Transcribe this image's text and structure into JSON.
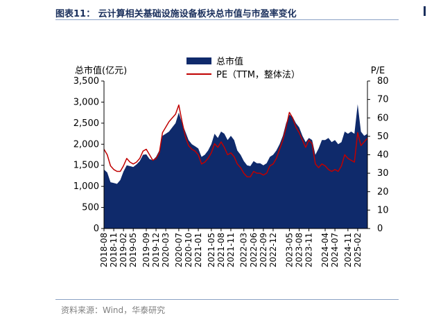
{
  "figure_title": "图表11：  云计算相关基础设施设备板块总市值与市盈率变化",
  "source_note": "资料来源：Wind，华泰研究",
  "colors": {
    "market_cap": "#0f2a6b",
    "pe": "#c00000",
    "axis": "#000000",
    "title": "#1a2f5c"
  },
  "chart_data": {
    "type": "area",
    "x_type": "date",
    "x_ticks": [
      "2018-08",
      "2018-11",
      "2019-02",
      "2019-05",
      "2019-09",
      "2019-12",
      "2020-03",
      "2020-07",
      "2020-10",
      "2021-01",
      "2021-05",
      "2021-08",
      "2021-11",
      "2022-03",
      "2022-06",
      "2022-09",
      "2022-12",
      "2023-05",
      "2023-08",
      "2023-11",
      "2024-04",
      "2024-07",
      "2024-11",
      "2025-02"
    ],
    "x_range": [
      "2018-08",
      "2025-05"
    ],
    "y_left": {
      "label": "总市值(亿元)",
      "ylim": [
        0,
        3500
      ],
      "ticks": [
        "0",
        "500",
        "1,000",
        "1,500",
        "2,000",
        "2,500",
        "3,000",
        "3,500"
      ]
    },
    "y_right": {
      "label": "P/E",
      "ylim": [
        0,
        80
      ],
      "ticks": [
        "0",
        "10",
        "20",
        "30",
        "40",
        "50",
        "60",
        "70",
        "80"
      ]
    },
    "legend": {
      "placement": "top-center"
    },
    "series": [
      {
        "name": "总市值",
        "type": "area",
        "axis": "left",
        "color": "#0f2a6b",
        "points": [
          [
            "2018-08",
            1400
          ],
          [
            "2018-09",
            1330
          ],
          [
            "2018-10",
            1100
          ],
          [
            "2018-11",
            1080
          ],
          [
            "2018-12",
            1060
          ],
          [
            "2019-01",
            1150
          ],
          [
            "2019-02",
            1350
          ],
          [
            "2019-03",
            1500
          ],
          [
            "2019-04",
            1480
          ],
          [
            "2019-05",
            1460
          ],
          [
            "2019-06",
            1520
          ],
          [
            "2019-07",
            1600
          ],
          [
            "2019-08",
            1750
          ],
          [
            "2019-09",
            1760
          ],
          [
            "2019-10",
            1650
          ],
          [
            "2019-11",
            1620
          ],
          [
            "2019-12",
            1700
          ],
          [
            "2020-01",
            1850
          ],
          [
            "2020-02",
            2200
          ],
          [
            "2020-03",
            2250
          ],
          [
            "2020-04",
            2300
          ],
          [
            "2020-05",
            2400
          ],
          [
            "2020-06",
            2500
          ],
          [
            "2020-07",
            2750
          ],
          [
            "2020-08",
            2500
          ],
          [
            "2020-09",
            2300
          ],
          [
            "2020-10",
            2100
          ],
          [
            "2020-11",
            2000
          ],
          [
            "2020-12",
            1950
          ],
          [
            "2021-01",
            1900
          ],
          [
            "2021-02",
            1700
          ],
          [
            "2021-03",
            1750
          ],
          [
            "2021-04",
            1850
          ],
          [
            "2021-05",
            2000
          ],
          [
            "2021-06",
            2250
          ],
          [
            "2021-07",
            2150
          ],
          [
            "2021-08",
            2300
          ],
          [
            "2021-09",
            2250
          ],
          [
            "2021-10",
            2100
          ],
          [
            "2021-11",
            2200
          ],
          [
            "2021-12",
            2100
          ],
          [
            "2022-01",
            1850
          ],
          [
            "2022-02",
            1750
          ],
          [
            "2022-03",
            1600
          ],
          [
            "2022-04",
            1500
          ],
          [
            "2022-05",
            1480
          ],
          [
            "2022-06",
            1600
          ],
          [
            "2022-07",
            1550
          ],
          [
            "2022-08",
            1550
          ],
          [
            "2022-09",
            1500
          ],
          [
            "2022-10",
            1550
          ],
          [
            "2022-11",
            1700
          ],
          [
            "2022-12",
            1750
          ],
          [
            "2023-01",
            1850
          ],
          [
            "2023-02",
            2000
          ],
          [
            "2023-03",
            2200
          ],
          [
            "2023-04",
            2500
          ],
          [
            "2023-05",
            2700
          ],
          [
            "2023-06",
            2650
          ],
          [
            "2023-07",
            2500
          ],
          [
            "2023-08",
            2400
          ],
          [
            "2023-09",
            2200
          ],
          [
            "2023-10",
            2050
          ],
          [
            "2023-11",
            2150
          ],
          [
            "2023-12",
            2100
          ],
          [
            "2024-01",
            1750
          ],
          [
            "2024-02",
            1900
          ],
          [
            "2024-03",
            2100
          ],
          [
            "2024-04",
            2100
          ],
          [
            "2024-05",
            2150
          ],
          [
            "2024-06",
            2050
          ],
          [
            "2024-07",
            2100
          ],
          [
            "2024-08",
            2000
          ],
          [
            "2024-09",
            2050
          ],
          [
            "2024-10",
            2300
          ],
          [
            "2024-11",
            2250
          ],
          [
            "2024-12",
            2300
          ],
          [
            "2025-01",
            2250
          ],
          [
            "2025-02",
            2950
          ],
          [
            "2025-03",
            2300
          ],
          [
            "2025-04",
            2200
          ],
          [
            "2025-05",
            2250
          ]
        ]
      },
      {
        "name": "PE（TTM，整体法）",
        "type": "line",
        "axis": "right",
        "color": "#c00000",
        "points": [
          [
            "2018-08",
            43
          ],
          [
            "2018-09",
            40
          ],
          [
            "2018-10",
            34
          ],
          [
            "2018-11",
            32
          ],
          [
            "2018-12",
            31
          ],
          [
            "2019-01",
            31
          ],
          [
            "2019-02",
            34
          ],
          [
            "2019-03",
            38
          ],
          [
            "2019-04",
            36
          ],
          [
            "2019-05",
            35
          ],
          [
            "2019-06",
            36
          ],
          [
            "2019-07",
            38
          ],
          [
            "2019-08",
            42
          ],
          [
            "2019-09",
            43
          ],
          [
            "2019-10",
            40
          ],
          [
            "2019-11",
            37
          ],
          [
            "2019-12",
            38
          ],
          [
            "2020-01",
            41
          ],
          [
            "2020-02",
            52
          ],
          [
            "2020-03",
            55
          ],
          [
            "2020-04",
            58
          ],
          [
            "2020-05",
            60
          ],
          [
            "2020-06",
            62
          ],
          [
            "2020-07",
            67
          ],
          [
            "2020-08",
            58
          ],
          [
            "2020-09",
            50
          ],
          [
            "2020-10",
            45
          ],
          [
            "2020-11",
            43
          ],
          [
            "2020-12",
            42
          ],
          [
            "2021-01",
            40
          ],
          [
            "2021-02",
            35
          ],
          [
            "2021-03",
            36
          ],
          [
            "2021-04",
            38
          ],
          [
            "2021-05",
            41
          ],
          [
            "2021-06",
            46
          ],
          [
            "2021-07",
            44
          ],
          [
            "2021-08",
            47
          ],
          [
            "2021-09",
            44
          ],
          [
            "2021-10",
            40
          ],
          [
            "2021-11",
            41
          ],
          [
            "2021-12",
            39
          ],
          [
            "2022-01",
            35
          ],
          [
            "2022-02",
            33
          ],
          [
            "2022-03",
            30
          ],
          [
            "2022-04",
            28
          ],
          [
            "2022-05",
            28
          ],
          [
            "2022-06",
            31
          ],
          [
            "2022-07",
            30
          ],
          [
            "2022-08",
            30
          ],
          [
            "2022-09",
            29
          ],
          [
            "2022-10",
            30
          ],
          [
            "2022-11",
            34
          ],
          [
            "2022-12",
            35
          ],
          [
            "2023-01",
            38
          ],
          [
            "2023-02",
            43
          ],
          [
            "2023-03",
            48
          ],
          [
            "2023-04",
            55
          ],
          [
            "2023-05",
            63
          ],
          [
            "2023-06",
            60
          ],
          [
            "2023-07",
            55
          ],
          [
            "2023-08",
            52
          ],
          [
            "2023-09",
            48
          ],
          [
            "2023-10",
            44
          ],
          [
            "2023-11",
            48
          ],
          [
            "2023-12",
            46
          ],
          [
            "2024-01",
            35
          ],
          [
            "2024-02",
            33
          ],
          [
            "2024-03",
            35
          ],
          [
            "2024-04",
            34
          ],
          [
            "2024-05",
            32
          ],
          [
            "2024-06",
            31
          ],
          [
            "2024-07",
            32
          ],
          [
            "2024-08",
            31
          ],
          [
            "2024-09",
            34
          ],
          [
            "2024-10",
            40
          ],
          [
            "2024-11",
            38
          ],
          [
            "2024-12",
            37
          ],
          [
            "2025-01",
            36
          ],
          [
            "2025-02",
            52
          ],
          [
            "2025-03",
            45
          ],
          [
            "2025-04",
            47
          ],
          [
            "2025-05",
            49
          ]
        ]
      }
    ]
  }
}
